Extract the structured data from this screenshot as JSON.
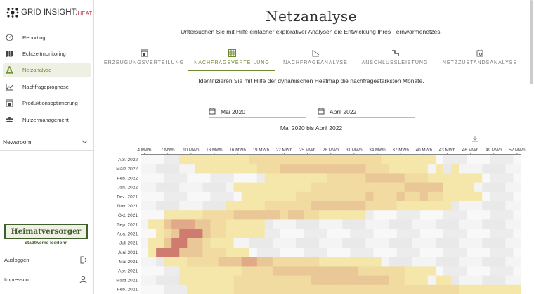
{
  "brand": {
    "name": "GRID INSIGHT:",
    "suffix": "HEAT"
  },
  "sidebar": {
    "items": [
      {
        "label": "Reporting",
        "icon": "gauge-icon"
      },
      {
        "label": "Echtzeitmonitoring",
        "icon": "map-icon"
      },
      {
        "label": "Netzanalyse",
        "icon": "network-icon",
        "active": true
      },
      {
        "label": "Nachfrageprognose",
        "icon": "line-chart-icon"
      },
      {
        "label": "Produktionsoptimierung",
        "icon": "factory-icon"
      },
      {
        "label": "Nutzermanagement",
        "icon": "users-icon"
      }
    ],
    "newsroom": "Newsroom",
    "partner_logo": "Heimatversorger",
    "partner_name": "Stadtwerke Iserlohn",
    "logout": "Ausloggen",
    "imprint": "Impressum"
  },
  "header": {
    "title": "Netzanalyse",
    "subtitle": "Untersuchen Sie mit Hilfe einfacher explorativer Analysen die Entwicklung Ihres Fernwärmenetzes."
  },
  "tabs": [
    {
      "label": "ERZEUGUNGSVERTEILUNG",
      "icon": "factory-icon"
    },
    {
      "label": "NACHFRAGEVERTEILUNG",
      "icon": "grid-icon",
      "active": true
    },
    {
      "label": "NACHFRAGEANALYSE",
      "icon": "area-chart-icon"
    },
    {
      "label": "ANSCHLUSSLEISTUNG",
      "icon": "connection-icon"
    },
    {
      "label": "NETZZUSTANDSANALYSE",
      "icon": "calendar-search-icon"
    }
  ],
  "description": "Identifizieren Sie mit Hilfe der dynamischen Heatmap die nachfragestärksten Monate.",
  "filters": {
    "from": "Mai 2020",
    "to": "April 2022"
  },
  "colors": {
    "accent": "#6d8a2b",
    "levels": [
      "#f5e7aa",
      "#f1dba0",
      "#eac796",
      "#e1a987",
      "#cf7b70"
    ]
  },
  "chart_data": {
    "type": "heatmap",
    "title": "Mai 2020 bis April 2022",
    "x_ticks": [
      "4 MWh",
      "7 MWh",
      "10 MWh",
      "13 MWh",
      "16 MWh",
      "19 MWh",
      "22 MWh",
      "25 MWh",
      "28 MWh",
      "31 MWh",
      "34 MWh",
      "37 MWh",
      "40 MWh",
      "43 MWh",
      "46 MWh",
      "49 MWh",
      "52 MWh"
    ],
    "x_range_mwh": [
      4,
      52
    ],
    "rows": [
      {
        "label": "Apr. 2022",
        "segments": [
          [
            5,
            37,
            1
          ],
          [
            14,
            30,
            2
          ]
        ]
      },
      {
        "label": "März 2022",
        "segments": [
          [
            7,
            36,
            1
          ],
          [
            15,
            31,
            2
          ],
          [
            18,
            28,
            3
          ],
          [
            38,
            38,
            1
          ],
          [
            40,
            40,
            1
          ]
        ]
      },
      {
        "label": "Feb. 2022",
        "segments": [
          [
            16,
            43,
            1
          ],
          [
            24,
            36,
            2
          ],
          [
            29,
            33,
            3
          ]
        ]
      },
      {
        "label": "Jan. 2022",
        "segments": [
          [
            12,
            42,
            1
          ],
          [
            22,
            37,
            2
          ],
          [
            34,
            38,
            3
          ]
        ]
      },
      {
        "label": "Dez. 2021",
        "segments": [
          [
            13,
            43,
            1
          ],
          [
            20,
            38,
            2
          ],
          [
            29,
            29,
            3
          ],
          [
            33,
            33,
            3
          ],
          [
            36,
            36,
            3
          ]
        ]
      },
      {
        "label": "Nov. 2021",
        "segments": [
          [
            11,
            39,
            1
          ],
          [
            16,
            32,
            2
          ],
          [
            22,
            28,
            3
          ]
        ]
      },
      {
        "label": "Okt. 2021",
        "segments": [
          [
            3,
            28,
            1
          ],
          [
            8,
            22,
            2
          ],
          [
            12,
            17,
            3
          ],
          [
            19,
            20,
            3
          ]
        ]
      },
      {
        "label": "Sep. 2021",
        "segments": [
          [
            1,
            15,
            1
          ],
          [
            3,
            10,
            2
          ],
          [
            3,
            8,
            3
          ],
          [
            4,
            6,
            4
          ]
        ]
      },
      {
        "label": "Aug. 2021",
        "segments": [
          [
            2,
            15,
            1
          ],
          [
            3,
            10,
            2
          ],
          [
            4,
            8,
            3
          ],
          [
            5,
            7,
            5
          ]
        ]
      },
      {
        "label": "Juli 2021",
        "segments": [
          [
            1,
            11,
            1
          ],
          [
            3,
            8,
            2
          ],
          [
            3,
            7,
            3
          ],
          [
            4,
            5,
            5
          ]
        ]
      },
      {
        "label": "Juni 2021",
        "segments": [
          [
            1,
            13,
            1
          ],
          [
            2,
            10,
            2
          ],
          [
            2,
            7,
            3
          ],
          [
            2,
            4,
            5
          ]
        ]
      },
      {
        "label": "Mai 2021",
        "segments": [
          [
            3,
            30,
            1
          ],
          [
            6,
            22,
            2
          ],
          [
            10,
            16,
            3
          ],
          [
            13,
            14,
            4
          ]
        ]
      },
      {
        "label": "Apr. 2021",
        "segments": [
          [
            5,
            37,
            1
          ],
          [
            13,
            33,
            2
          ],
          [
            17,
            27,
            3
          ]
        ]
      },
      {
        "label": "März 2021",
        "segments": [
          [
            5,
            36,
            1
          ],
          [
            12,
            33,
            2
          ],
          [
            22,
            31,
            3
          ],
          [
            38,
            39,
            1
          ]
        ]
      },
      {
        "label": "Feb. 2021",
        "segments": [
          [
            6,
            48,
            1
          ],
          [
            12,
            40,
            2
          ]
        ]
      }
    ]
  }
}
